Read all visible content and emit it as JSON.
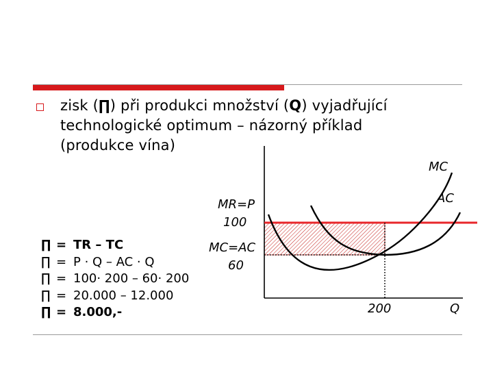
{
  "bullet": {
    "text_before_pi": "zisk (",
    "pi_symbol": "∏",
    "text_after_pi": ") při produkci množství (",
    "q_symbol": "Q",
    "text_after_q": ") vyjadřující",
    "line2": "technologické optimum – názorný příklad",
    "line3": "(produkce vína)"
  },
  "formulas": [
    {
      "pi": "∏",
      "eq": "=",
      "expr": "TR – TC",
      "bold": true
    },
    {
      "pi": "∏",
      "eq": "=",
      "expr": "P · Q – AC · Q",
      "bold": false
    },
    {
      "pi": "∏",
      "eq": "=",
      "expr": "100· 200 – 60· 200",
      "bold": false
    },
    {
      "pi": "∏",
      "eq": "=",
      "expr": "20.000 – 12.000",
      "bold": false
    },
    {
      "pi": "∏",
      "eq": "=",
      "expr": "8.000,-",
      "bold": true
    }
  ],
  "diagram": {
    "mc_label": "MC",
    "ac_label": "AC",
    "mr_label_line1": "MR=P",
    "mr_label_line2": "100",
    "mcac_label_line1": "MC=AC",
    "mcac_label_line2": "60",
    "q_value_label": "200",
    "q_axis_label": "Q",
    "price": 100,
    "ac_min": 60,
    "quantity": 200,
    "colors": {
      "price_line": "#e8262a",
      "hatch": "#c9302c",
      "curves": "#000000",
      "dots": "#000000"
    }
  }
}
